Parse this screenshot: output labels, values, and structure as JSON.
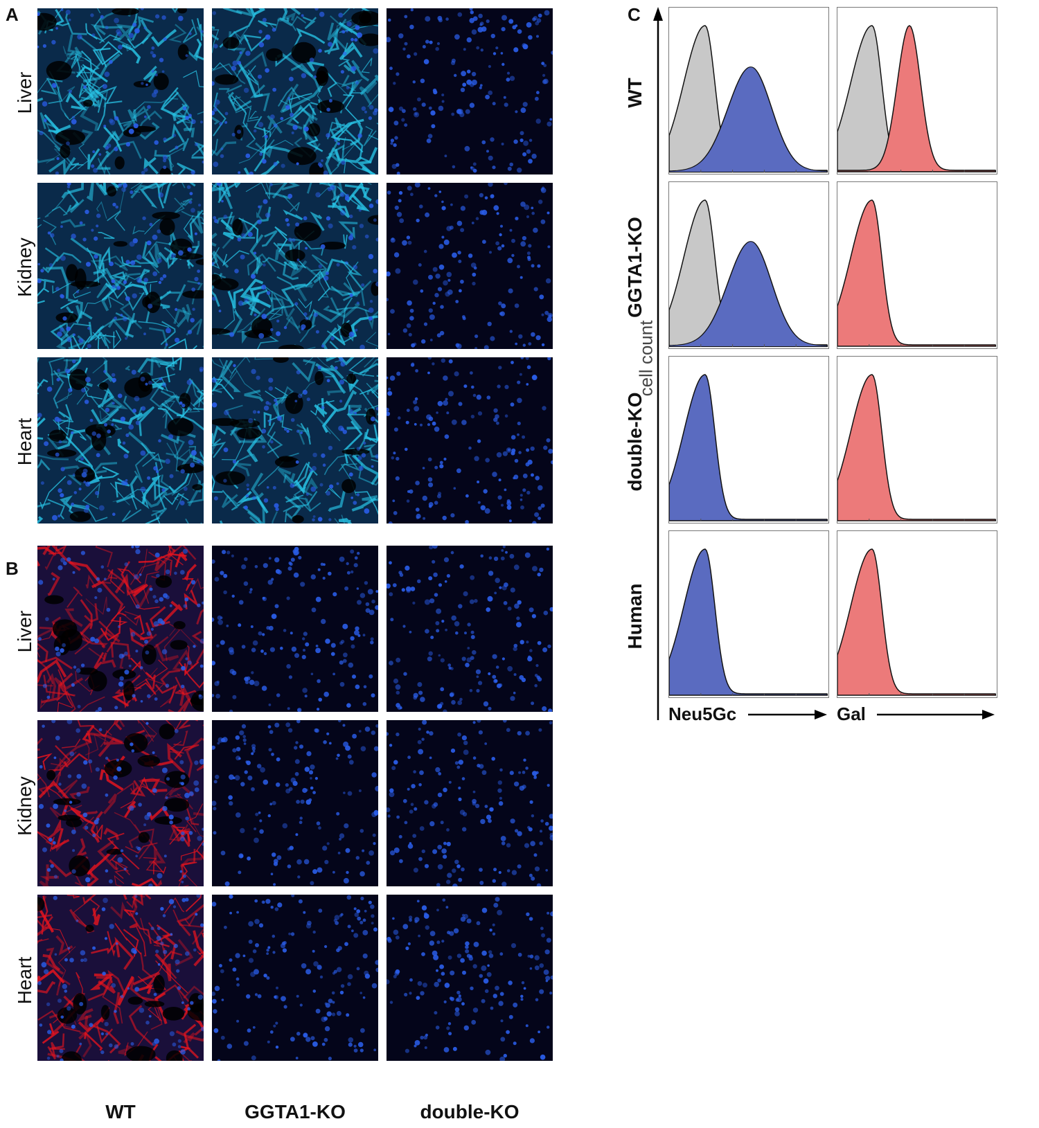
{
  "panels": {
    "a": "A",
    "b": "B",
    "c": "C"
  },
  "tissues": [
    "Liver",
    "Kidney",
    "Heart"
  ],
  "genotypes": [
    "WT",
    "GGTA1-KO",
    "double-KO"
  ],
  "panel_a_stain_color": "#28c4e6",
  "panel_b_stain_color": "#e8141e",
  "nuclei_color": "#2a5de8",
  "panel_a_signal": [
    [
      1,
      1,
      0
    ],
    [
      1,
      1,
      0
    ],
    [
      1,
      1,
      0
    ]
  ],
  "panel_b_signal": [
    [
      1,
      0,
      0
    ],
    [
      1,
      0,
      0
    ],
    [
      1,
      0,
      0
    ]
  ],
  "flow": {
    "row_labels": [
      "WT",
      "GGTA1-KO",
      "double-KO",
      "Human"
    ],
    "y_label": "cell count",
    "x_labels": [
      "Neu5Gc",
      "Gal"
    ],
    "control_color": "#c8c8c8",
    "neu5gc_color": "#5a6bc0",
    "gal_color": "#ec7a7a",
    "neu5gc_shift": [
      1,
      1,
      0,
      0
    ],
    "gal_shift": [
      1,
      0,
      0,
      0
    ]
  }
}
